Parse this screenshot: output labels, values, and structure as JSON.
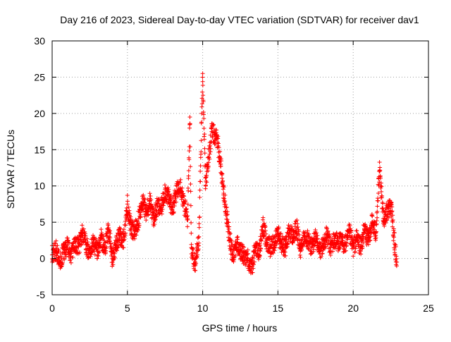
{
  "chart_data": {
    "type": "scatter",
    "title": "Day 216 of 2023, Sidereal Day-to-day VTEC variation (SDTVAR) for receiver dav1",
    "xlabel": "GPS time / hours",
    "ylabel": "SDTVAR / TECUs",
    "xlim": [
      0,
      25
    ],
    "ylim": [
      -5,
      30
    ],
    "xticks": [
      "0",
      "5",
      "10",
      "15",
      "20",
      "25"
    ],
    "yticks": [
      "-5",
      "0",
      "5",
      "10",
      "15",
      "20",
      "25",
      "30"
    ],
    "grid": true,
    "marker": "+",
    "series_color": "#ff0000",
    "series": [
      {
        "name": "SDTVAR",
        "points": [
          [
            0.0,
            0.5
          ],
          [
            0.25,
            1.2
          ],
          [
            0.5,
            -0.4
          ],
          [
            0.75,
            0.8
          ],
          [
            1.0,
            1.8
          ],
          [
            1.25,
            0.3
          ],
          [
            1.5,
            2.4
          ],
          [
            1.75,
            1.6
          ],
          [
            2.0,
            3.4
          ],
          [
            2.25,
            1.9
          ],
          [
            2.5,
            0.8
          ],
          [
            2.75,
            2.2
          ],
          [
            3.0,
            1.0
          ],
          [
            3.25,
            2.8
          ],
          [
            3.5,
            1.5
          ],
          [
            3.75,
            4.0
          ],
          [
            4.0,
            0.0
          ],
          [
            4.25,
            1.9
          ],
          [
            4.5,
            3.2
          ],
          [
            4.75,
            2.5
          ],
          [
            5.0,
            7.5
          ],
          [
            5.25,
            4.0
          ],
          [
            5.5,
            3.8
          ],
          [
            5.75,
            5.5
          ],
          [
            6.0,
            7.8
          ],
          [
            6.25,
            6.5
          ],
          [
            6.5,
            8.0
          ],
          [
            6.75,
            5.5
          ],
          [
            7.0,
            7.2
          ],
          [
            7.25,
            6.8
          ],
          [
            7.5,
            9.5
          ],
          [
            7.75,
            8.2
          ],
          [
            8.0,
            7.0
          ],
          [
            8.25,
            9.0
          ],
          [
            8.5,
            10.5
          ],
          [
            8.75,
            7.5
          ],
          [
            9.0,
            5.5
          ],
          [
            9.15,
            19.5
          ],
          [
            9.25,
            1.5
          ],
          [
            9.5,
            -1.0
          ],
          [
            9.75,
            3.0
          ],
          [
            10.0,
            25.5
          ],
          [
            10.2,
            10.0
          ],
          [
            10.4,
            14.0
          ],
          [
            10.6,
            17.5
          ],
          [
            10.8,
            17.0
          ],
          [
            11.0,
            16.0
          ],
          [
            11.2,
            13.0
          ],
          [
            11.4,
            9.0
          ],
          [
            11.6,
            6.0
          ],
          [
            11.8,
            2.5
          ],
          [
            12.0,
            0.5
          ],
          [
            12.25,
            2.0
          ],
          [
            12.5,
            1.0
          ],
          [
            12.75,
            0.5
          ],
          [
            13.0,
            0.0
          ],
          [
            13.25,
            -1.5
          ],
          [
            13.5,
            1.5
          ],
          [
            13.75,
            0.5
          ],
          [
            14.0,
            4.5
          ],
          [
            14.25,
            2.5
          ],
          [
            14.5,
            1.5
          ],
          [
            14.75,
            2.2
          ],
          [
            15.0,
            3.5
          ],
          [
            15.25,
            2.0
          ],
          [
            15.5,
            1.5
          ],
          [
            15.75,
            3.8
          ],
          [
            16.0,
            3.0
          ],
          [
            16.25,
            4.2
          ],
          [
            16.5,
            1.0
          ],
          [
            16.75,
            3.5
          ],
          [
            17.0,
            2.5
          ],
          [
            17.25,
            1.5
          ],
          [
            17.5,
            3.0
          ],
          [
            17.75,
            1.0
          ],
          [
            18.0,
            1.8
          ],
          [
            18.25,
            3.2
          ],
          [
            18.5,
            1.5
          ],
          [
            18.75,
            2.5
          ],
          [
            19.5,
            2.0
          ],
          [
            19.75,
            3.5
          ],
          [
            20.0,
            1.5
          ],
          [
            20.25,
            2.8
          ],
          [
            20.5,
            1.5
          ],
          [
            20.75,
            4.0
          ],
          [
            21.0,
            2.5
          ],
          [
            21.25,
            5.0
          ],
          [
            21.5,
            3.5
          ],
          [
            21.75,
            12.0
          ],
          [
            22.0,
            5.5
          ],
          [
            22.25,
            6.5
          ],
          [
            22.5,
            7.5
          ],
          [
            22.75,
            2.0
          ],
          [
            22.9,
            -0.5
          ]
        ]
      }
    ]
  }
}
